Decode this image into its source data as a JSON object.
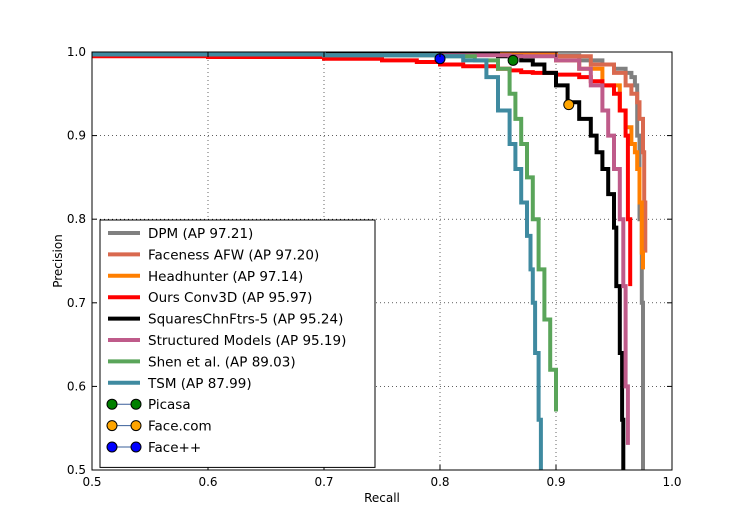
{
  "chart_data": {
    "type": "line",
    "title": "",
    "xlabel": "Recall",
    "ylabel": "Precision",
    "xlim": [
      0.5,
      1.0
    ],
    "ylim": [
      0.5,
      1.0
    ],
    "grid": true,
    "xticks": [
      0.5,
      0.6,
      0.7,
      0.8,
      0.9,
      1.0
    ],
    "yticks": [
      0.5,
      0.6,
      0.7,
      0.8,
      0.9,
      1.0
    ],
    "xtick_labels": [
      "0.5",
      "0.6",
      "0.7",
      "0.8",
      "0.9",
      "1.0"
    ],
    "ytick_labels": [
      "0.5",
      "0.6",
      "0.7",
      "0.8",
      "0.9",
      "1.0"
    ],
    "legend_position": "lower-left",
    "series": [
      {
        "name": "DPM (AP 97.21)",
        "color": "#808080",
        "x": [
          0.5,
          0.7,
          0.86,
          0.9,
          0.92,
          0.94,
          0.95,
          0.96,
          0.965,
          0.968,
          0.97,
          0.972,
          0.974,
          0.975
        ],
        "y": [
          0.998,
          0.998,
          0.997,
          0.996,
          0.99,
          0.985,
          0.98,
          0.975,
          0.97,
          0.96,
          0.9,
          0.8,
          0.7,
          0.5
        ]
      },
      {
        "name": "Faceness AFW (AP 97.20)",
        "color": "#d9694f",
        "x": [
          0.5,
          0.7,
          0.86,
          0.9,
          0.93,
          0.95,
          0.96,
          0.965,
          0.97,
          0.972,
          0.975,
          0.976,
          0.977
        ],
        "y": [
          0.998,
          0.998,
          0.997,
          0.995,
          0.985,
          0.975,
          0.96,
          0.95,
          0.94,
          0.92,
          0.88,
          0.82,
          0.76
        ]
      },
      {
        "name": "Headhunter (AP 97.14)",
        "color": "#ff7f00",
        "x": [
          0.5,
          0.7,
          0.86,
          0.9,
          0.92,
          0.94,
          0.955,
          0.96,
          0.965,
          0.968,
          0.97,
          0.972,
          0.974,
          0.975
        ],
        "y": [
          0.997,
          0.997,
          0.996,
          0.99,
          0.98,
          0.96,
          0.93,
          0.91,
          0.89,
          0.88,
          0.86,
          0.82,
          0.76,
          0.74
        ]
      },
      {
        "name": "Ours Conv3D (AP 95.97)",
        "color": "#ff0000",
        "x": [
          0.5,
          0.6,
          0.7,
          0.75,
          0.78,
          0.8,
          0.82,
          0.85,
          0.86,
          0.87,
          0.88,
          0.9,
          0.92,
          0.93,
          0.94,
          0.95,
          0.955,
          0.96,
          0.962,
          0.964
        ],
        "y": [
          0.995,
          0.994,
          0.992,
          0.99,
          0.988,
          0.985,
          0.983,
          0.98,
          0.978,
          0.976,
          0.975,
          0.973,
          0.97,
          0.965,
          0.96,
          0.95,
          0.93,
          0.9,
          0.8,
          0.72
        ]
      },
      {
        "name": "SquaresChnFtrs-5 (AP 95.24)",
        "color": "#000000",
        "x": [
          0.5,
          0.7,
          0.85,
          0.87,
          0.88,
          0.89,
          0.9,
          0.91,
          0.92,
          0.93,
          0.935,
          0.94,
          0.945,
          0.95,
          0.952,
          0.955,
          0.957,
          0.958
        ],
        "y": [
          0.998,
          0.997,
          0.995,
          0.99,
          0.985,
          0.975,
          0.96,
          0.94,
          0.92,
          0.9,
          0.88,
          0.86,
          0.83,
          0.79,
          0.72,
          0.64,
          0.56,
          0.5
        ]
      },
      {
        "name": "Structured Models (AP 95.19)",
        "color": "#bf5b8a",
        "x": [
          0.5,
          0.7,
          0.86,
          0.9,
          0.92,
          0.93,
          0.94,
          0.945,
          0.95,
          0.955,
          0.958,
          0.96,
          0.962
        ],
        "y": [
          0.997,
          0.996,
          0.995,
          0.99,
          0.98,
          0.96,
          0.93,
          0.9,
          0.86,
          0.8,
          0.72,
          0.6,
          0.53
        ]
      },
      {
        "name": "Shen et al. (AP 89.03)",
        "color": "#5aa55a",
        "x": [
          0.5,
          0.7,
          0.8,
          0.83,
          0.85,
          0.86,
          0.865,
          0.87,
          0.875,
          0.88,
          0.885,
          0.89,
          0.895,
          0.9
        ],
        "y": [
          0.997,
          0.996,
          0.995,
          0.99,
          0.98,
          0.95,
          0.92,
          0.89,
          0.85,
          0.8,
          0.74,
          0.68,
          0.62,
          0.57
        ]
      },
      {
        "name": "TSM (AP 87.99)",
        "color": "#3f8aa0",
        "x": [
          0.5,
          0.7,
          0.8,
          0.82,
          0.84,
          0.85,
          0.86,
          0.865,
          0.87,
          0.875,
          0.878,
          0.88,
          0.882,
          0.885,
          0.887
        ],
        "y": [
          0.997,
          0.996,
          0.995,
          0.99,
          0.97,
          0.93,
          0.89,
          0.86,
          0.82,
          0.78,
          0.74,
          0.7,
          0.64,
          0.56,
          0.5
        ]
      }
    ],
    "points": [
      {
        "name": "Picasa",
        "color": "#008000",
        "x": 0.863,
        "y": 0.99
      },
      {
        "name": "Face.com",
        "color": "#ffa500",
        "x": 0.911,
        "y": 0.937
      },
      {
        "name": "Face++",
        "color": "#0000ff",
        "x": 0.8,
        "y": 0.992
      }
    ]
  }
}
